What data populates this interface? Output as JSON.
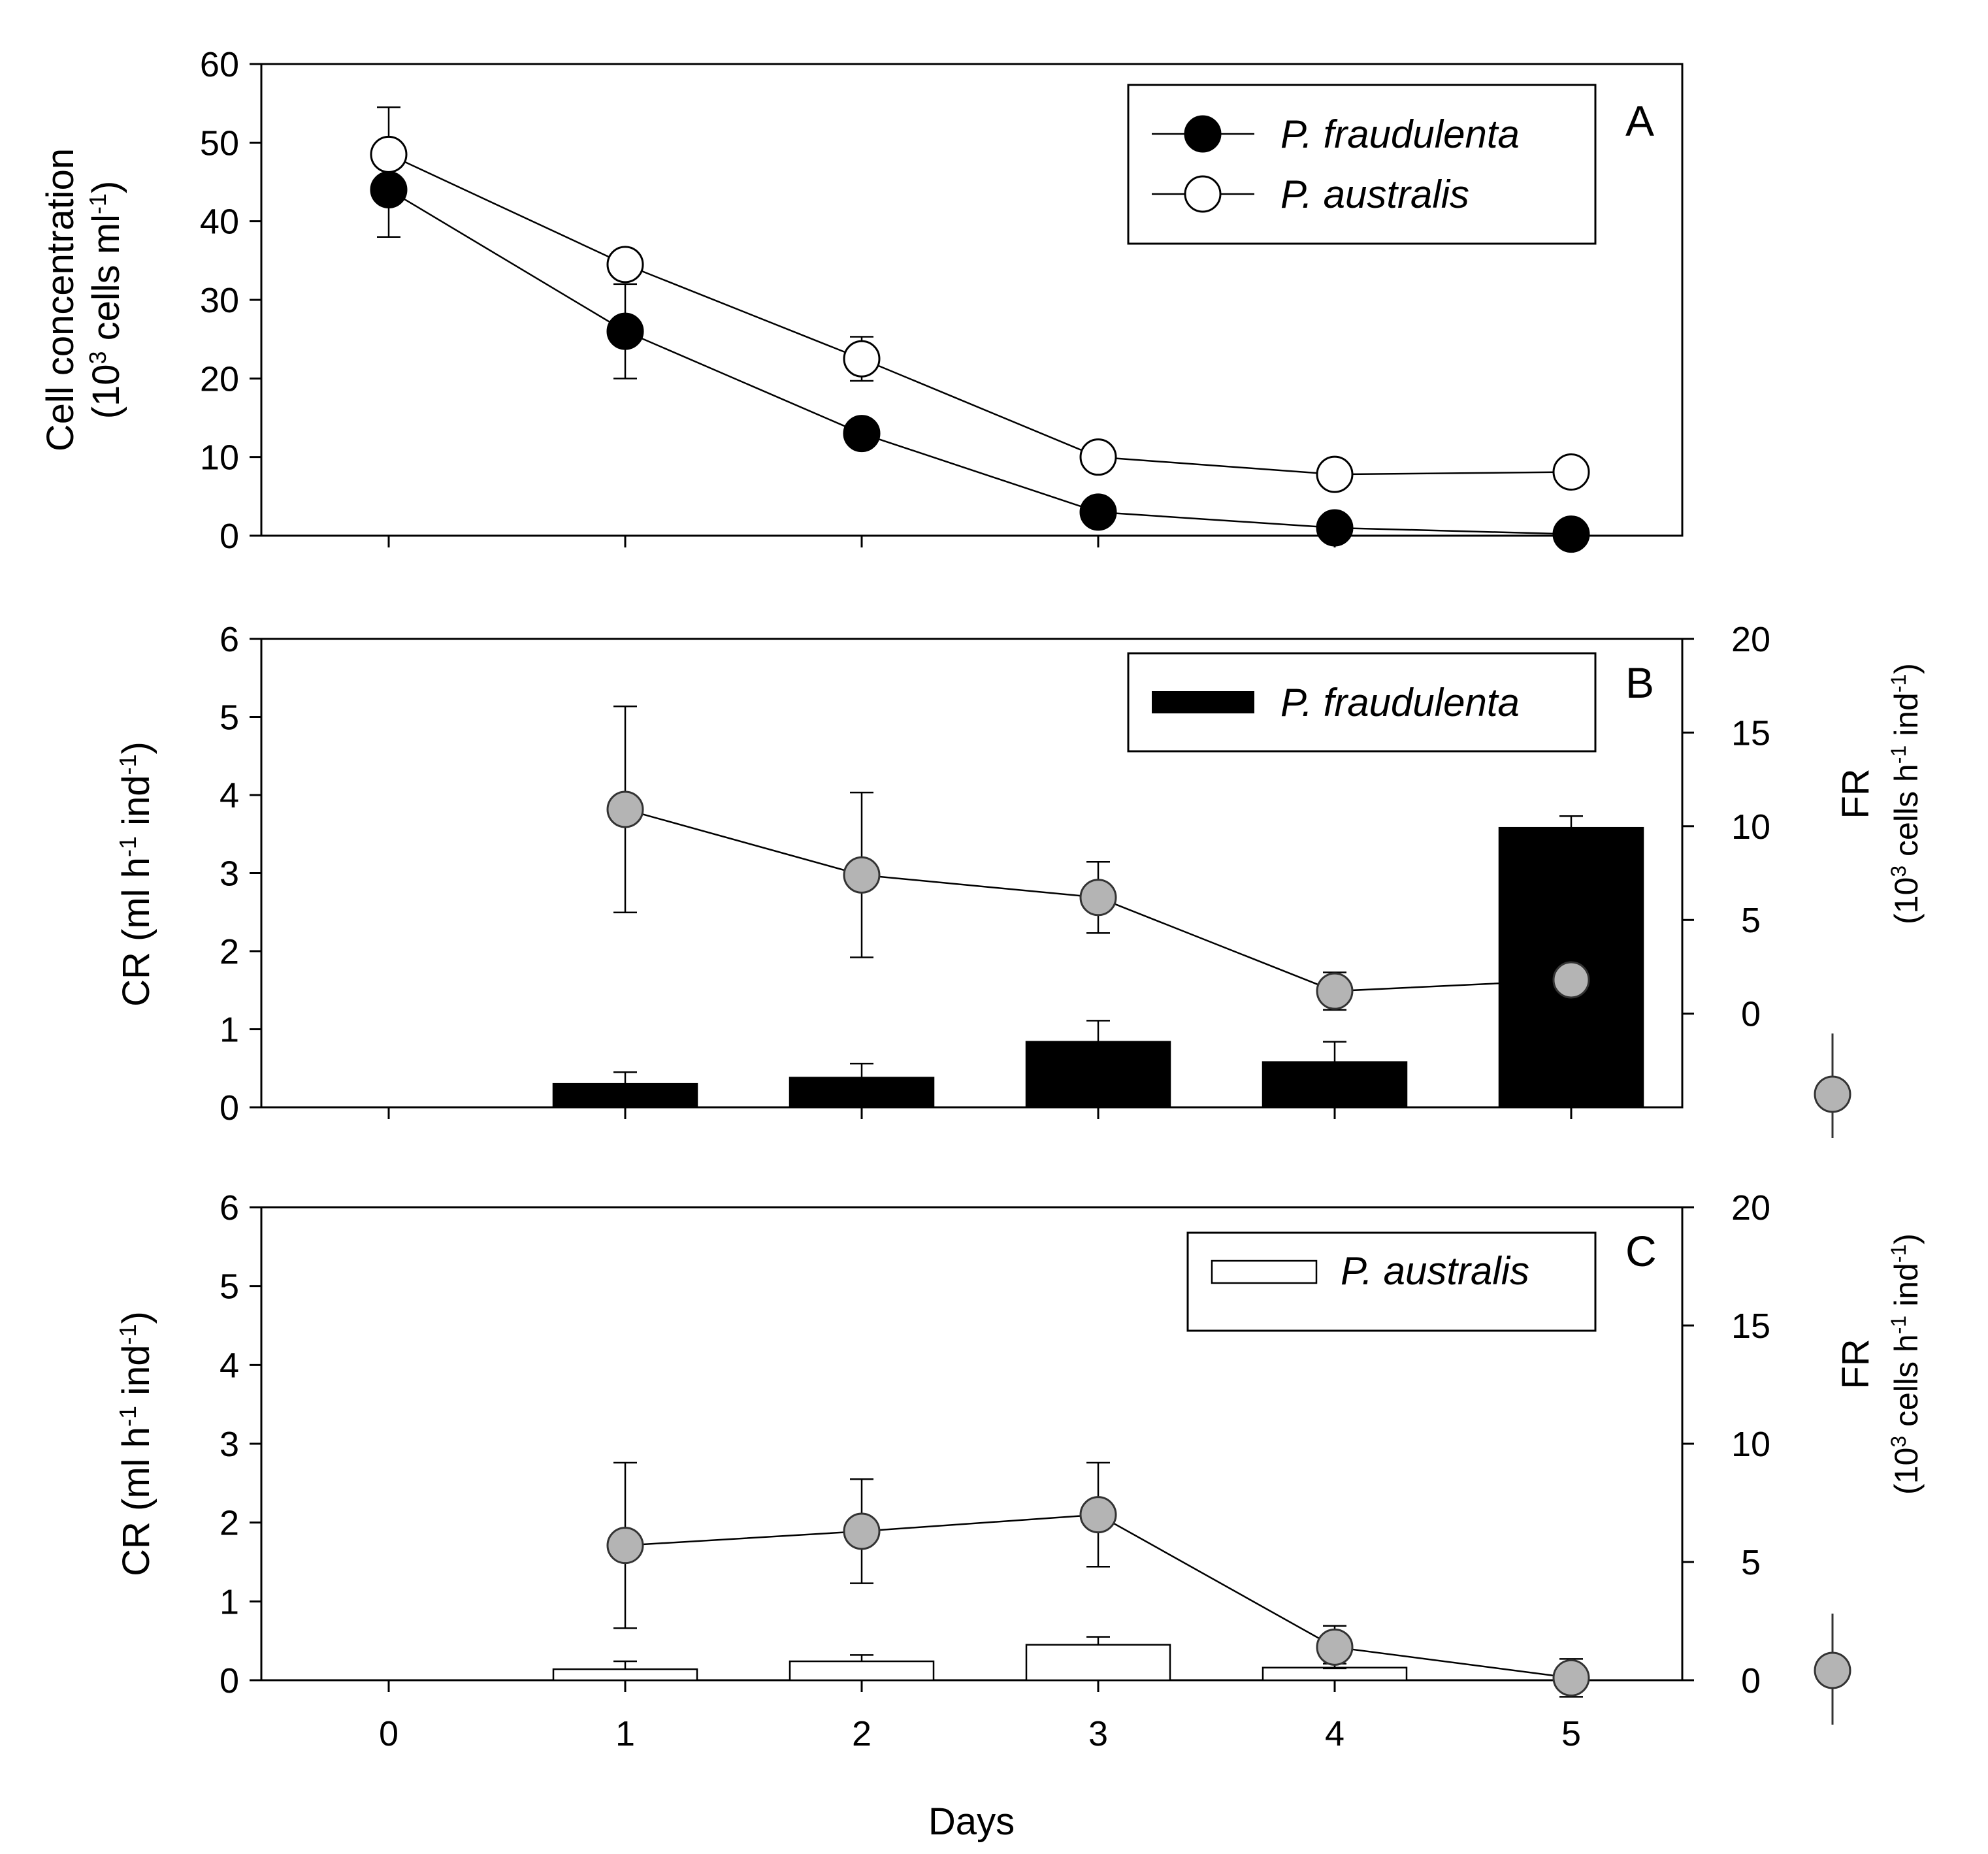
{
  "chart_data": [
    {
      "panel": "A",
      "type": "line",
      "xlabel": "",
      "ylabel_line1": "Cell concentration",
      "ylabel_line2_prefix": "(10",
      "ylabel_line2_sup": "3",
      "ylabel_line2_mid": " cells ml",
      "ylabel_line2_sup2": "-1",
      "ylabel_line2_end": ")",
      "ylim": [
        0,
        60
      ],
      "yticks": [
        "0",
        "10",
        "20",
        "30",
        "40",
        "50",
        "60"
      ],
      "x": [
        0,
        1,
        2,
        3,
        4,
        5
      ],
      "series": [
        {
          "name": "P. fraudulenta",
          "marker": "filled",
          "values": [
            44,
            26,
            13,
            3,
            1,
            0.2
          ],
          "errors": [
            6,
            6,
            0,
            0,
            0,
            0
          ]
        },
        {
          "name": "P. australis",
          "marker": "open",
          "values": [
            48.5,
            34.5,
            22.5,
            10,
            7.8,
            8.1
          ],
          "errors": [
            6,
            0,
            2.8,
            0,
            0,
            0
          ]
        }
      ]
    },
    {
      "panel": "B",
      "type": "bar",
      "xlabel": "",
      "ylabel": "CR (ml h-1 ind-1)",
      "ylabel_parts": [
        "CR (ml h",
        "-1",
        " ind",
        "-1",
        ")"
      ],
      "ylabel_right_line1": "FR",
      "ylabel_right_parts": [
        "(10",
        "3",
        " cells h",
        "-1",
        " ind",
        "-1",
        ")"
      ],
      "ylim": [
        0,
        6
      ],
      "yticks": [
        "0",
        "1",
        "2",
        "3",
        "4",
        "5",
        "6"
      ],
      "ylim_right": [
        -5,
        20
      ],
      "yticks_right": [
        "0",
        "5",
        "10",
        "15",
        "20"
      ],
      "x": [
        0,
        1,
        2,
        3,
        4,
        5
      ],
      "bars": {
        "name": "P. fraudulenta",
        "fill": "#000000",
        "values": [
          null,
          0.3,
          0.38,
          0.84,
          0.58,
          3.58
        ],
        "errors": [
          null,
          0.15,
          0.18,
          0.27,
          0.26,
          0.15
        ]
      },
      "line": {
        "name": "FR",
        "fill": "#b4b4b4",
        "values": [
          null,
          10.9,
          7.4,
          6.2,
          1.2,
          1.8
        ],
        "errors": [
          null,
          5.5,
          4.4,
          1.9,
          1.0,
          0
        ]
      }
    },
    {
      "panel": "C",
      "type": "bar",
      "xlabel": "Days",
      "ylabel": "CR (ml h-1 ind-1)",
      "ylabel_parts": [
        "CR (ml h",
        "-1",
        " ind",
        "-1",
        ")"
      ],
      "ylabel_right_line1": "FR",
      "ylabel_right_parts": [
        "(10",
        "3",
        " cells h",
        "-1",
        " ind",
        "-1",
        ")"
      ],
      "ylim": [
        0,
        6
      ],
      "yticks": [
        "0",
        "1",
        "2",
        "3",
        "4",
        "5",
        "6"
      ],
      "ylim_right": [
        0,
        20
      ],
      "yticks_right": [
        "0",
        "5",
        "10",
        "15",
        "20"
      ],
      "xticks": [
        "0",
        "1",
        "2",
        "3",
        "4",
        "5"
      ],
      "x": [
        0,
        1,
        2,
        3,
        4,
        5
      ],
      "bars": {
        "name": "P. australis",
        "fill": "#ffffff",
        "values": [
          null,
          0.14,
          0.24,
          0.45,
          0.16,
          null
        ],
        "errors": [
          null,
          0.1,
          0.08,
          0.1,
          0.05,
          null
        ]
      },
      "line": {
        "name": "FR",
        "fill": "#b4b4b4",
        "values": [
          null,
          5.7,
          6.3,
          7.0,
          1.4,
          0.1
        ],
        "errors": [
          null,
          3.5,
          2.2,
          2.2,
          0.9,
          0.8
        ]
      }
    }
  ],
  "colors": {
    "axis": "#000000",
    "fr_marker": "#b4b4b4",
    "marker_stroke": "#333333"
  }
}
